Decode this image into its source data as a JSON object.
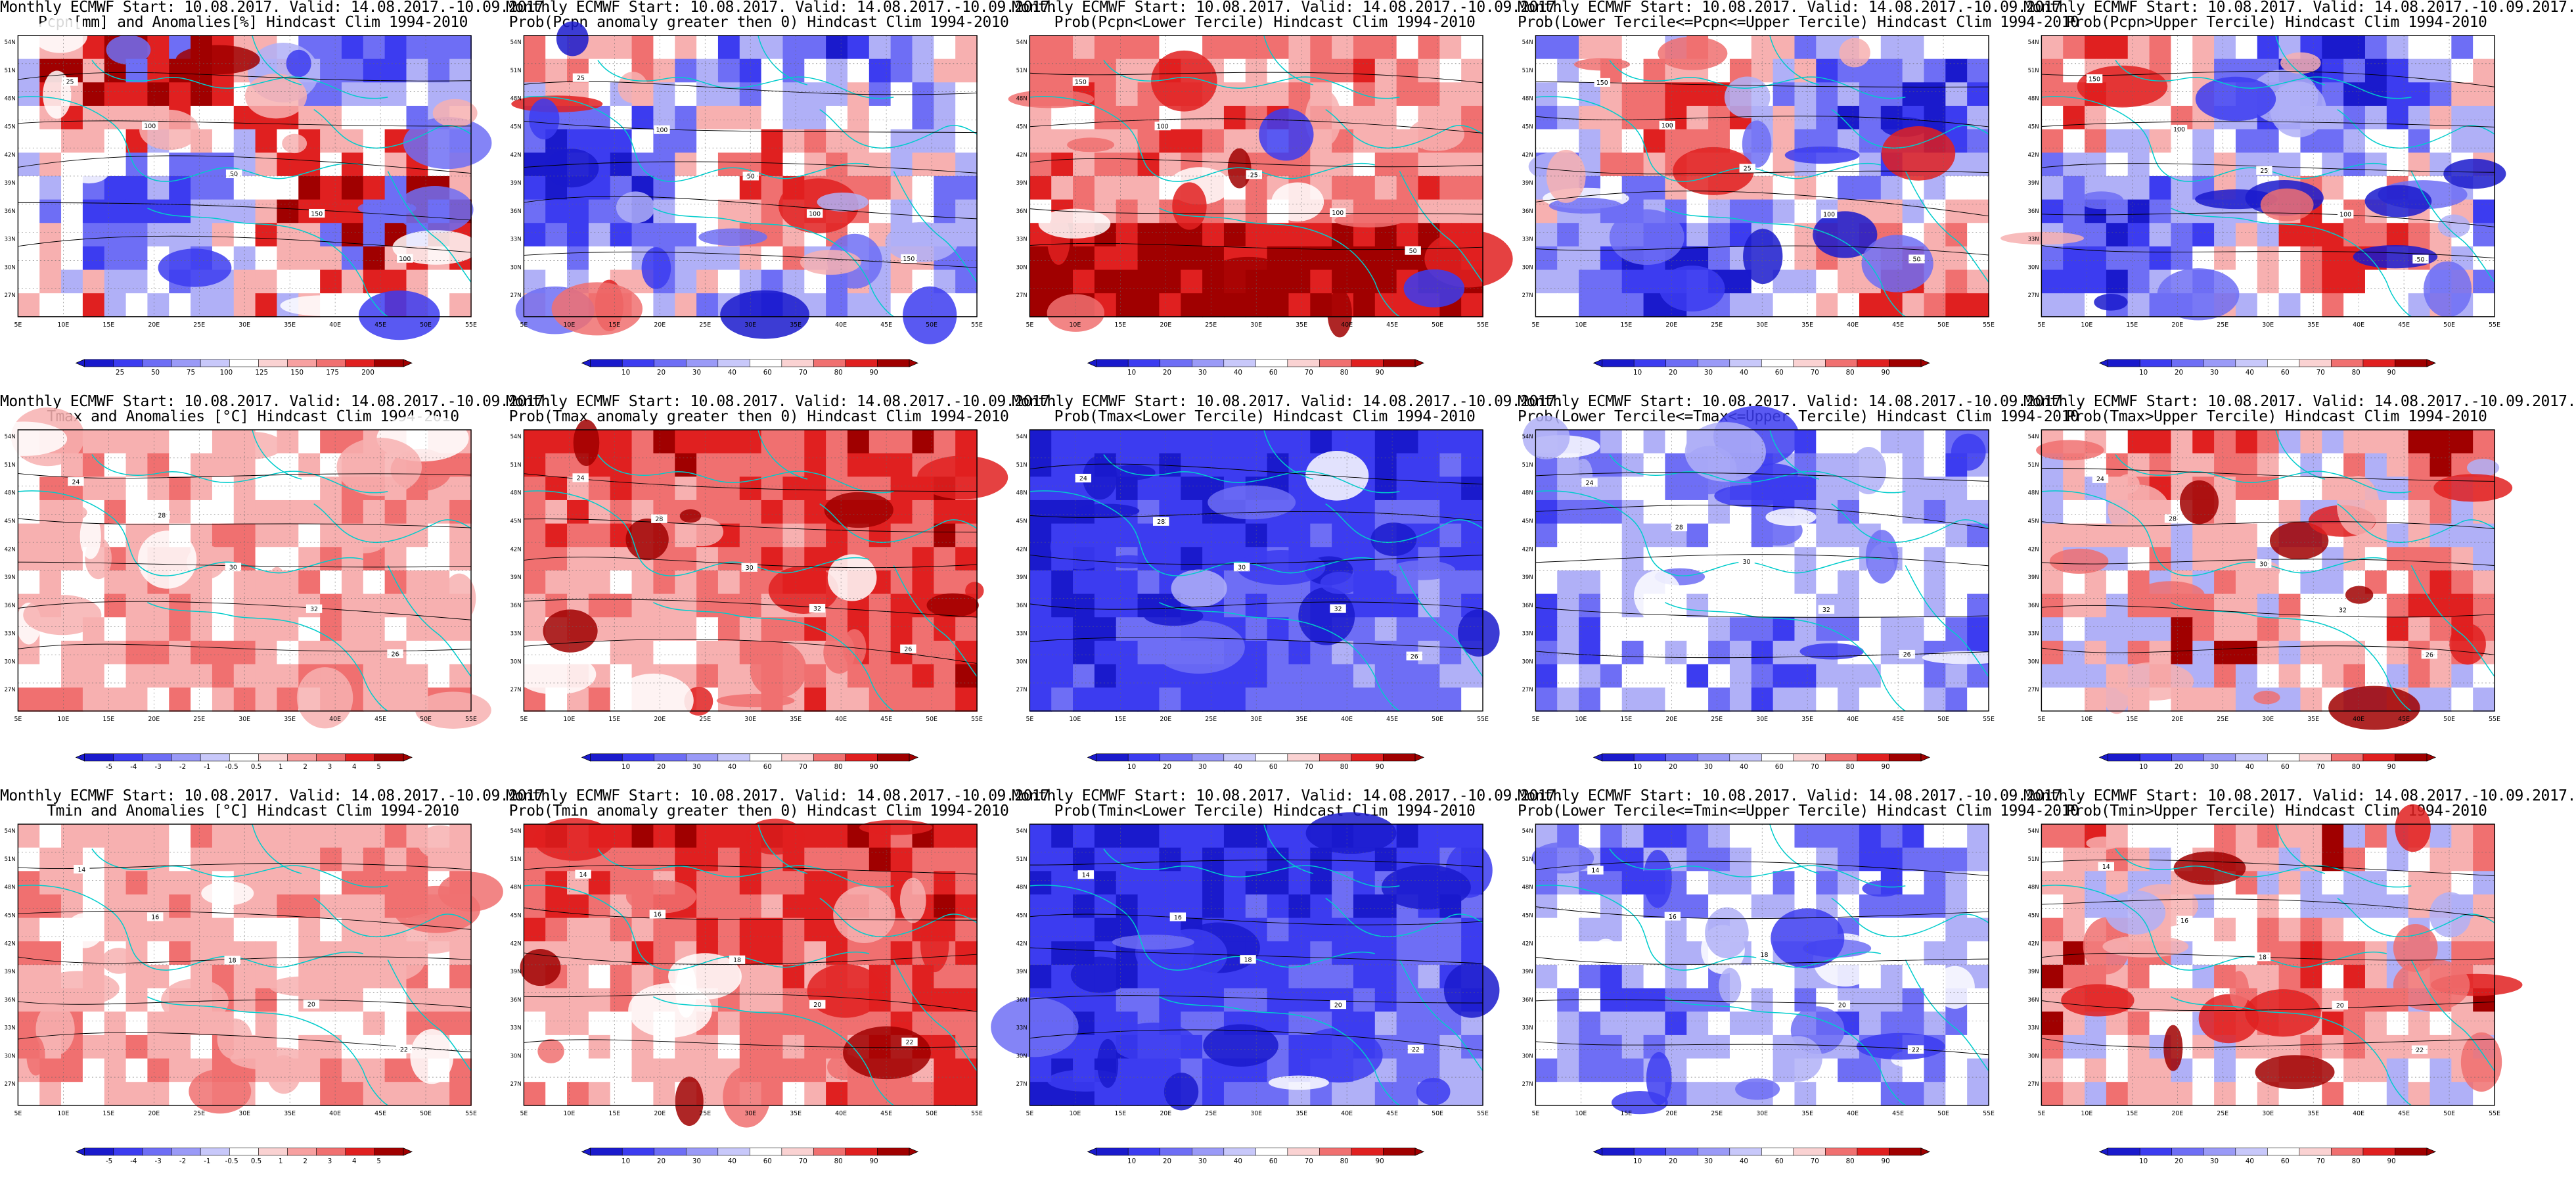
{
  "figure": {
    "panels": [
      {
        "title_line1": "Monthly ECMWF Start: 10.08.2017. Valid: 14.08.2017.-10.09.2017.",
        "title_line2": "Pcpn[mm] and Anomalies[%] Hindcast Clim 1994-2010",
        "scheme": "anom_precip",
        "colorbar_ticks": [
          "25",
          "50",
          "75",
          "100",
          "125",
          "150",
          "175",
          "200"
        ],
        "contour_labels": [
          "25",
          "100",
          "50",
          "150",
          "100"
        ]
      },
      {
        "title_line1": "Monthly ECMWF Start: 10.08.2017. Valid: 14.08.2017.-10.09.2017.",
        "title_line2": "Prob(Pcpn anomaly greater then 0) Hindcast Clim 1994-2010",
        "scheme": "prob_low",
        "colorbar_ticks": [
          "10",
          "20",
          "30",
          "40",
          "60",
          "70",
          "80",
          "90"
        ],
        "contour_labels": [
          "25",
          "100",
          "50",
          "100",
          "150"
        ]
      },
      {
        "title_line1": "Monthly ECMWF Start: 10.08.2017. Valid: 14.08.2017.-10.09.2017.",
        "title_line2": "Prob(Pcpn<Lower Tercile) Hindcast Clim 1994-2010",
        "scheme": "prob_dry",
        "colorbar_ticks": [
          "10",
          "20",
          "30",
          "40",
          "60",
          "70",
          "80",
          "90"
        ],
        "contour_labels": [
          "150",
          "100",
          "25",
          "100",
          "50"
        ]
      },
      {
        "title_line1": "Monthly ECMWF Start: 10.08.2017. Valid: 14.08.2017.-10.09.2017.",
        "title_line2": "Prob(Lower Tercile<=Pcpn<=Upper Tercile) Hindcast Clim 1994-2010",
        "scheme": "prob_low",
        "colorbar_ticks": [
          "10",
          "20",
          "30",
          "40",
          "60",
          "70",
          "80",
          "90"
        ],
        "contour_labels": [
          "150",
          "100",
          "25",
          "100",
          "50"
        ]
      },
      {
        "title_line1": "Monthly ECMWF Start: 10.08.2017. Valid: 14.08.2017.-10.09.2017.",
        "title_line2": "Prob(Pcpn>Upper Tercile) Hindcast Clim 1994-2010",
        "scheme": "prob_low",
        "colorbar_ticks": [
          "10",
          "20",
          "30",
          "40",
          "60",
          "70",
          "80",
          "90"
        ],
        "contour_labels": [
          "150",
          "100",
          "25",
          "100",
          "50"
        ]
      },
      {
        "title_line1": "Monthly ECMWF Start: 10.08.2017. Valid: 14.08.2017.-10.09.2017.",
        "title_line2": "Tmax and Anomalies [°C] Hindcast Clim 1994-2010",
        "scheme": "anom_temp",
        "colorbar_ticks": [
          "-5",
          "-4",
          "-3",
          "-2",
          "-1",
          "-0.5",
          "0.5",
          "1",
          "2",
          "3",
          "4",
          "5"
        ],
        "contour_labels": [
          "24",
          "28",
          "30",
          "32",
          "26"
        ]
      },
      {
        "title_line1": "Monthly ECMWF Start: 10.08.2017. Valid: 14.08.2017.-10.09.2017.",
        "title_line2": "Prob(Tmax anomaly greater then 0) Hindcast Clim 1994-2010",
        "scheme": "prob_warm",
        "colorbar_ticks": [
          "10",
          "20",
          "30",
          "40",
          "60",
          "70",
          "80",
          "90"
        ],
        "contour_labels": [
          "24",
          "28",
          "30",
          "32",
          "26"
        ]
      },
      {
        "title_line1": "Monthly ECMWF Start: 10.08.2017. Valid: 14.08.2017.-10.09.2017.",
        "title_line2": "Prob(Tmax<Lower Tercile) Hindcast Clim 1994-2010",
        "scheme": "prob_cold",
        "colorbar_ticks": [
          "10",
          "20",
          "30",
          "40",
          "60",
          "70",
          "80",
          "90"
        ],
        "contour_labels": [
          "24",
          "28",
          "30",
          "32",
          "26"
        ]
      },
      {
        "title_line1": "Monthly ECMWF Start: 10.08.2017. Valid: 14.08.2017.-10.09.2017.",
        "title_line2": "Prob(Lower Tercile<=Tmax<=Upper Tercile) Hindcast Clim 1994-2010",
        "scheme": "prob_mid",
        "colorbar_ticks": [
          "10",
          "20",
          "30",
          "40",
          "60",
          "70",
          "80",
          "90"
        ],
        "contour_labels": [
          "24",
          "28",
          "30",
          "32",
          "26"
        ]
      },
      {
        "title_line1": "Monthly ECMWF Start: 10.08.2017. Valid: 14.08.2017.-10.09.2017.",
        "title_line2": "Prob(Tmax>Upper Tercile) Hindcast Clim 1994-2010",
        "scheme": "prob_upper",
        "colorbar_ticks": [
          "10",
          "20",
          "30",
          "40",
          "60",
          "70",
          "80",
          "90"
        ],
        "contour_labels": [
          "24",
          "28",
          "30",
          "32",
          "26"
        ]
      },
      {
        "title_line1": "Monthly ECMWF Start: 10.08.2017. Valid: 14.08.2017.-10.09.2017.",
        "title_line2": "Tmin and Anomalies [°C] Hindcast Clim 1994-2010",
        "scheme": "anom_temp",
        "colorbar_ticks": [
          "-5",
          "-4",
          "-3",
          "-2",
          "-1",
          "-0.5",
          "0.5",
          "1",
          "2",
          "3",
          "4",
          "5"
        ],
        "contour_labels": [
          "14",
          "16",
          "18",
          "20",
          "22"
        ]
      },
      {
        "title_line1": "Monthly ECMWF Start: 10.08.2017. Valid: 14.08.2017.-10.09.2017.",
        "title_line2": "Prob(Tmin anomaly greater then 0) Hindcast Clim 1994-2010",
        "scheme": "prob_warm",
        "colorbar_ticks": [
          "10",
          "20",
          "30",
          "40",
          "60",
          "70",
          "80",
          "90"
        ],
        "contour_labels": [
          "14",
          "16",
          "18",
          "20",
          "22"
        ]
      },
      {
        "title_line1": "Monthly ECMWF Start: 10.08.2017. Valid: 14.08.2017.-10.09.2017.",
        "title_line2": "Prob(Tmin<Lower Tercile) Hindcast Clim 1994-2010",
        "scheme": "prob_cold",
        "colorbar_ticks": [
          "10",
          "20",
          "30",
          "40",
          "60",
          "70",
          "80",
          "90"
        ],
        "contour_labels": [
          "14",
          "16",
          "18",
          "20",
          "22"
        ]
      },
      {
        "title_line1": "Monthly ECMWF Start: 10.08.2017. Valid: 14.08.2017.-10.09.2017.",
        "title_line2": "Prob(Lower Tercile<=Tmin<=Upper Tercile) Hindcast Clim 1994-2010",
        "scheme": "prob_mid",
        "colorbar_ticks": [
          "10",
          "20",
          "30",
          "40",
          "60",
          "70",
          "80",
          "90"
        ],
        "contour_labels": [
          "14",
          "16",
          "18",
          "20",
          "22"
        ]
      },
      {
        "title_line1": "Monthly ECMWF Start: 10.08.2017. Valid: 14.08.2017.-10.09.2017.",
        "title_line2": "Prob(Tmin>Upper Tercile) Hindcast Clim 1994-2010",
        "scheme": "prob_upper",
        "colorbar_ticks": [
          "10",
          "20",
          "30",
          "40",
          "60",
          "70",
          "80",
          "90"
        ],
        "contour_labels": [
          "14",
          "16",
          "18",
          "20",
          "22"
        ]
      }
    ],
    "lon_ticks": [
      "5E",
      "10E",
      "15E",
      "20E",
      "25E",
      "30E",
      "35E",
      "40E",
      "45E",
      "50E",
      "55E"
    ],
    "lat_ticks": [
      "54N",
      "51N",
      "48N",
      "45N",
      "42N",
      "39N",
      "36N",
      "33N",
      "30N",
      "27N"
    ],
    "colors": {
      "blue_dark": "#1a1acc",
      "blue": "#3c3cf0",
      "blue_mid": "#6e6ef5",
      "blue_light": "#b0b0f7",
      "white": "#ffffff",
      "red_light": "#f7b0b0",
      "red_mid": "#f07070",
      "red": "#e02020",
      "red_dark": "#a00000",
      "coast": "#00cccc",
      "contour": "#000000"
    }
  }
}
